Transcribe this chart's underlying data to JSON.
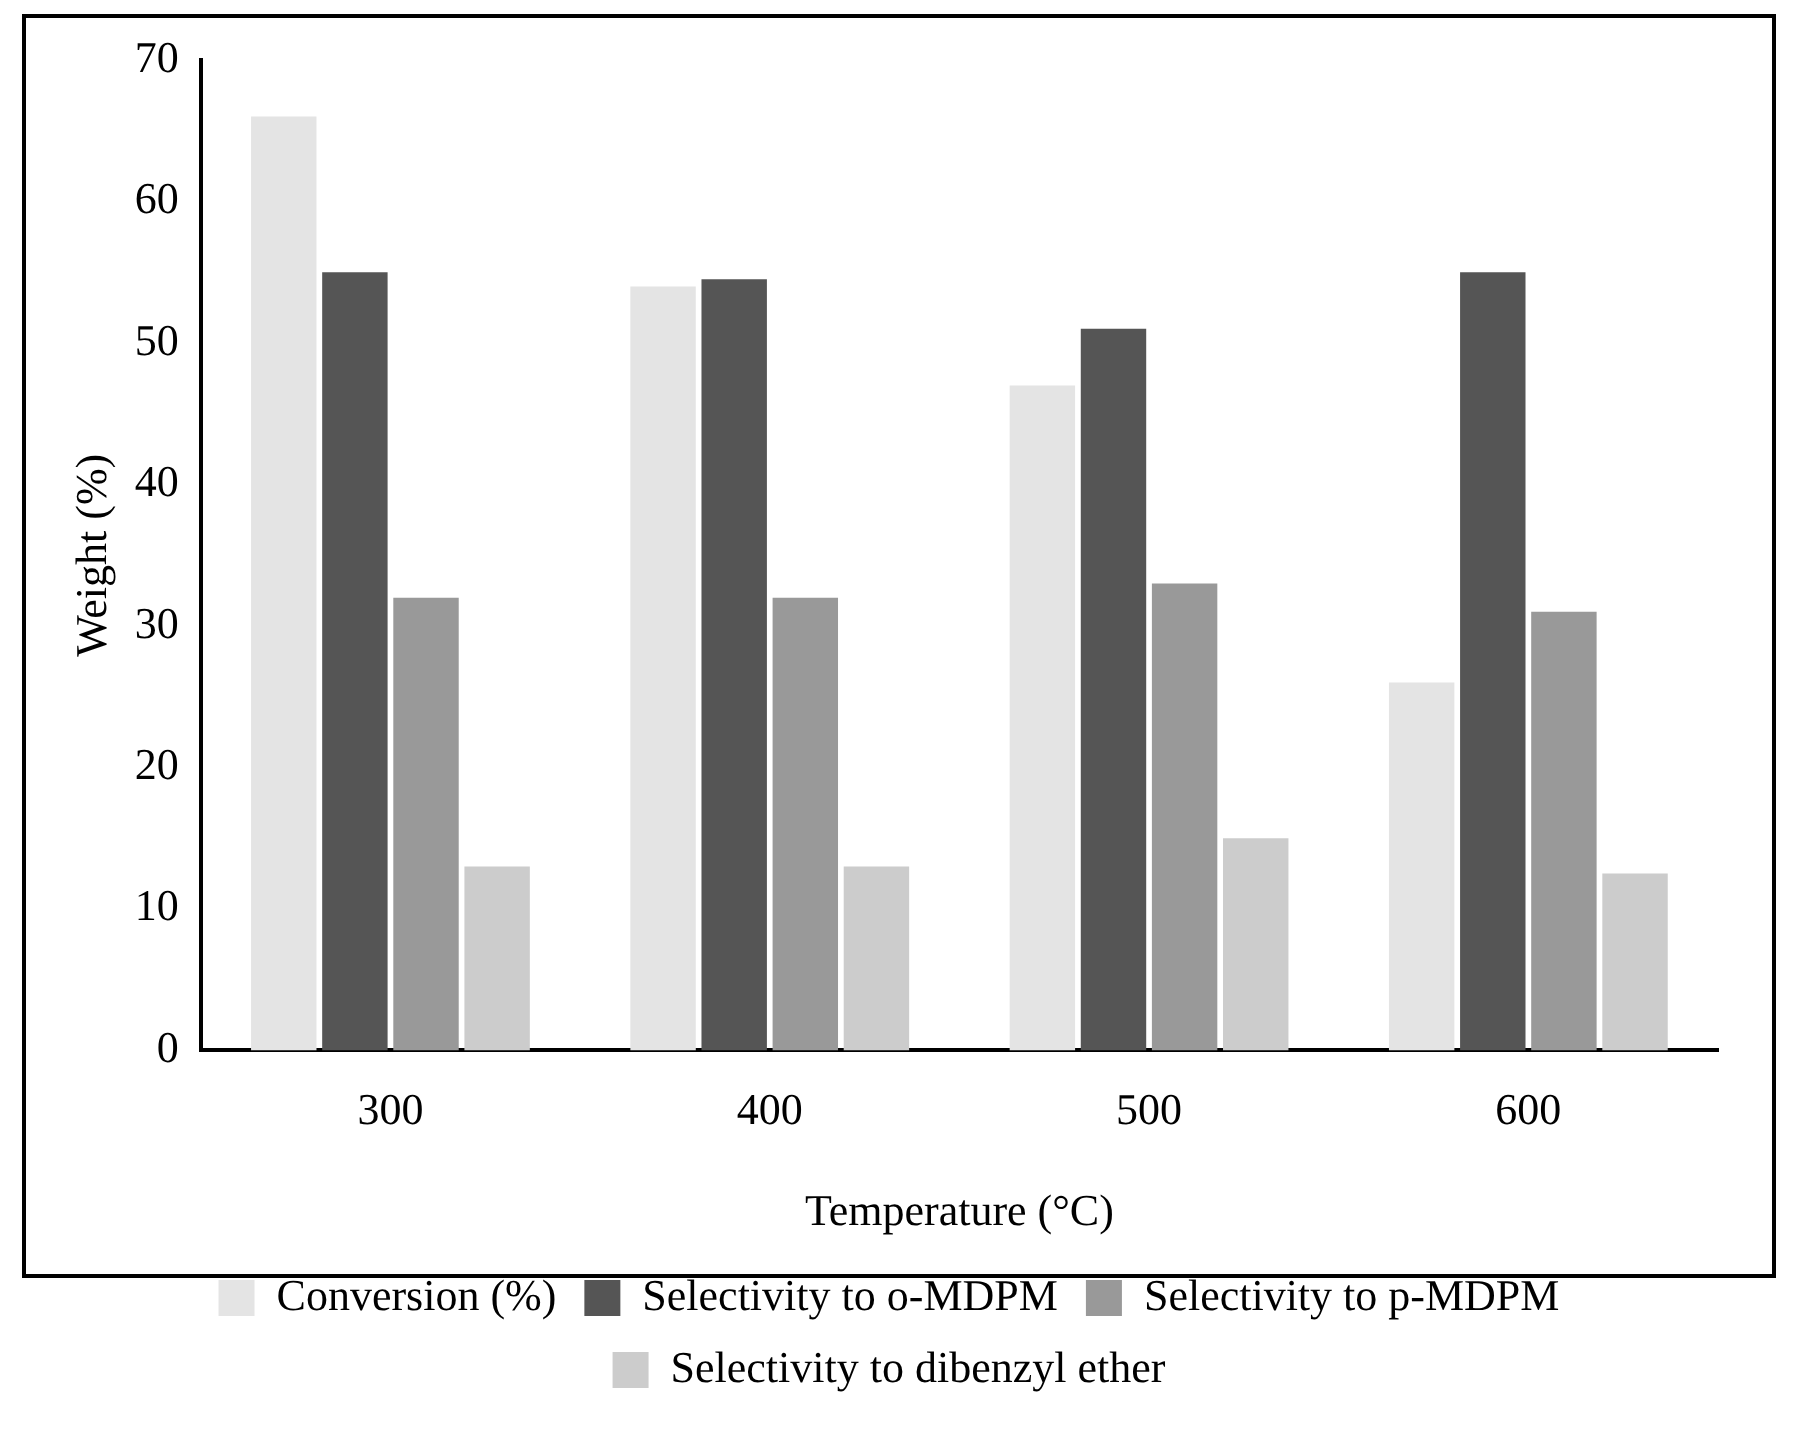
{
  "chart_data": {
    "type": "bar",
    "xlabel": "Temperature (°C)",
    "ylabel": "Weight (%)",
    "categories": [
      "300",
      "400",
      "500",
      "600"
    ],
    "series": [
      {
        "name": "Conversion (%)",
        "color": "#e4e4e4",
        "values": [
          66,
          54,
          47,
          26
        ]
      },
      {
        "name": "Selectivity to o-MDPM",
        "color": "#555555",
        "values": [
          55,
          54.5,
          51,
          55
        ]
      },
      {
        "name": "Selectivity to p-MDPM",
        "color": "#999999",
        "values": [
          32,
          32,
          33,
          31
        ]
      },
      {
        "name": "Selectivity to dibenzyl ether",
        "color": "#cccccc",
        "values": [
          13,
          13,
          15,
          12.5
        ]
      }
    ],
    "ylim": [
      0,
      70
    ],
    "yticks": [
      0,
      10,
      20,
      30,
      40,
      50,
      60,
      70
    ],
    "grid": false,
    "legend": "bottom"
  }
}
